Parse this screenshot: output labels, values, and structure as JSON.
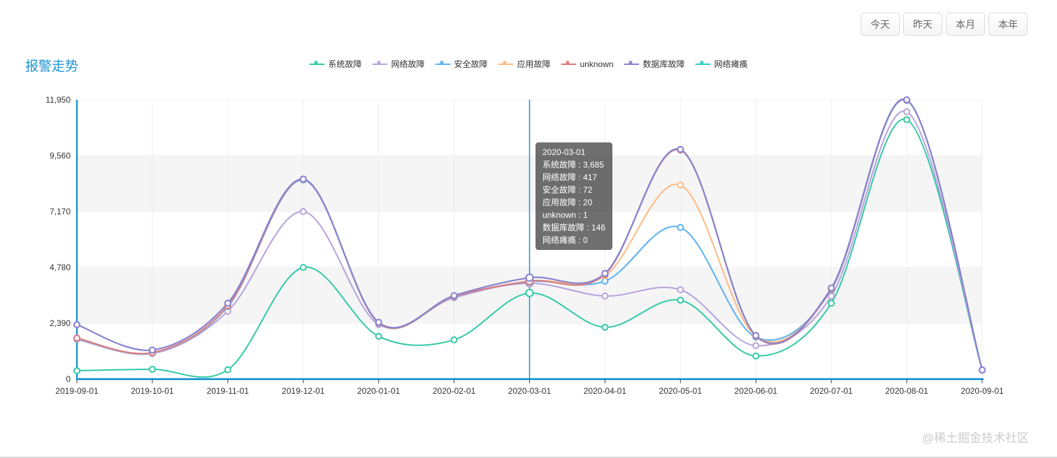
{
  "page": {
    "watermark": "@稀土掘金技术社区"
  },
  "toolbar": {
    "buttons": [
      "今天",
      "昨天",
      "本月",
      "本年"
    ]
  },
  "header": {
    "title": "报警走势",
    "title_color": "#1e94d2"
  },
  "legend": {
    "items": [
      {
        "label": "系统故障",
        "color": "#33c9a6"
      },
      {
        "label": "网络故障",
        "color": "#b6a2de"
      },
      {
        "label": "安全故障",
        "color": "#5ab1ef"
      },
      {
        "label": "应用故障",
        "color": "#ffb980"
      },
      {
        "label": "unknown",
        "color": "#d87a80"
      },
      {
        "label": "数据库故障",
        "color": "#8d7fd1"
      },
      {
        "label": "网络瘫痪",
        "color": "#2ec7c9"
      }
    ]
  },
  "tooltip": {
    "title": "2020-03-01",
    "rows": [
      {
        "name": "系统故障",
        "value": "3,685"
      },
      {
        "name": "网络故障",
        "value": "417"
      },
      {
        "name": "安全故障",
        "value": "72"
      },
      {
        "name": "应用故障",
        "value": "20"
      },
      {
        "name": "unknown",
        "value": "1"
      },
      {
        "name": "数据库故障",
        "value": "146"
      },
      {
        "name": "网络瘫痪",
        "value": "0"
      }
    ]
  },
  "chart_data": {
    "type": "line",
    "stacked": true,
    "smooth": true,
    "title": "报警走势",
    "x": [
      "2019-09-01",
      "2019-10-01",
      "2019-11-01",
      "2019-12-01",
      "2020-01-01",
      "2020-02-01",
      "2020-03-01",
      "2020-04-01",
      "2020-05-01",
      "2020-06-01",
      "2020-07-01",
      "2020-08-01",
      "2020-09-01"
    ],
    "series": [
      {
        "name": "系统故障",
        "color": "#33c9a6",
        "values": [
          360,
          420,
          400,
          4780,
          1830,
          1680,
          3685,
          2220,
          3376,
          990,
          3250,
          11100,
          380
        ]
      },
      {
        "name": "网络故障",
        "color": "#b6a2de",
        "values": [
          1340,
          670,
          2500,
          2390,
          500,
          1800,
          417,
          1335,
          448,
          445,
          300,
          340,
          5
        ]
      },
      {
        "name": "安全故障",
        "color": "#5ab1ef",
        "values": [
          30,
          30,
          200,
          1350,
          60,
          50,
          72,
          637,
          2668,
          355,
          270,
          480,
          3
        ]
      },
      {
        "name": "应用故障",
        "color": "#ffb980",
        "values": [
          20,
          10,
          30,
          20,
          10,
          10,
          20,
          230,
          1813,
          40,
          30,
          15,
          1
        ]
      },
      {
        "name": "unknown",
        "color": "#d87a80",
        "values": [
          10,
          5,
          10,
          5,
          5,
          5,
          1,
          60,
          1495,
          10,
          10,
          5,
          0
        ]
      },
      {
        "name": "数据库故障",
        "color": "#8d7fd1",
        "values": [
          570,
          110,
          110,
          15,
          25,
          30,
          146,
          40,
          30,
          25,
          40,
          10,
          1
        ]
      },
      {
        "name": "网络瘫痪",
        "color": "#2ec7c9",
        "values": [
          0,
          0,
          0,
          0,
          0,
          0,
          0,
          0,
          0,
          0,
          0,
          0,
          0
        ]
      }
    ],
    "y_ticks": [
      "0",
      "2,390",
      "4,780",
      "7,170",
      "9,560",
      "11,950"
    ],
    "y_tick_values": [
      0,
      2390,
      4780,
      7170,
      9560,
      11950
    ],
    "ylim": [
      0,
      11950
    ],
    "axis_line_color": "#008acd",
    "axis_pointer_index": 6,
    "axis_pointer_color": "#1e94d2",
    "grid_line_color": "#eeeeee",
    "split_area_color": "rgba(200,200,200,0.18)",
    "axis_label_color": "#333333",
    "legend_position": "top-center"
  }
}
